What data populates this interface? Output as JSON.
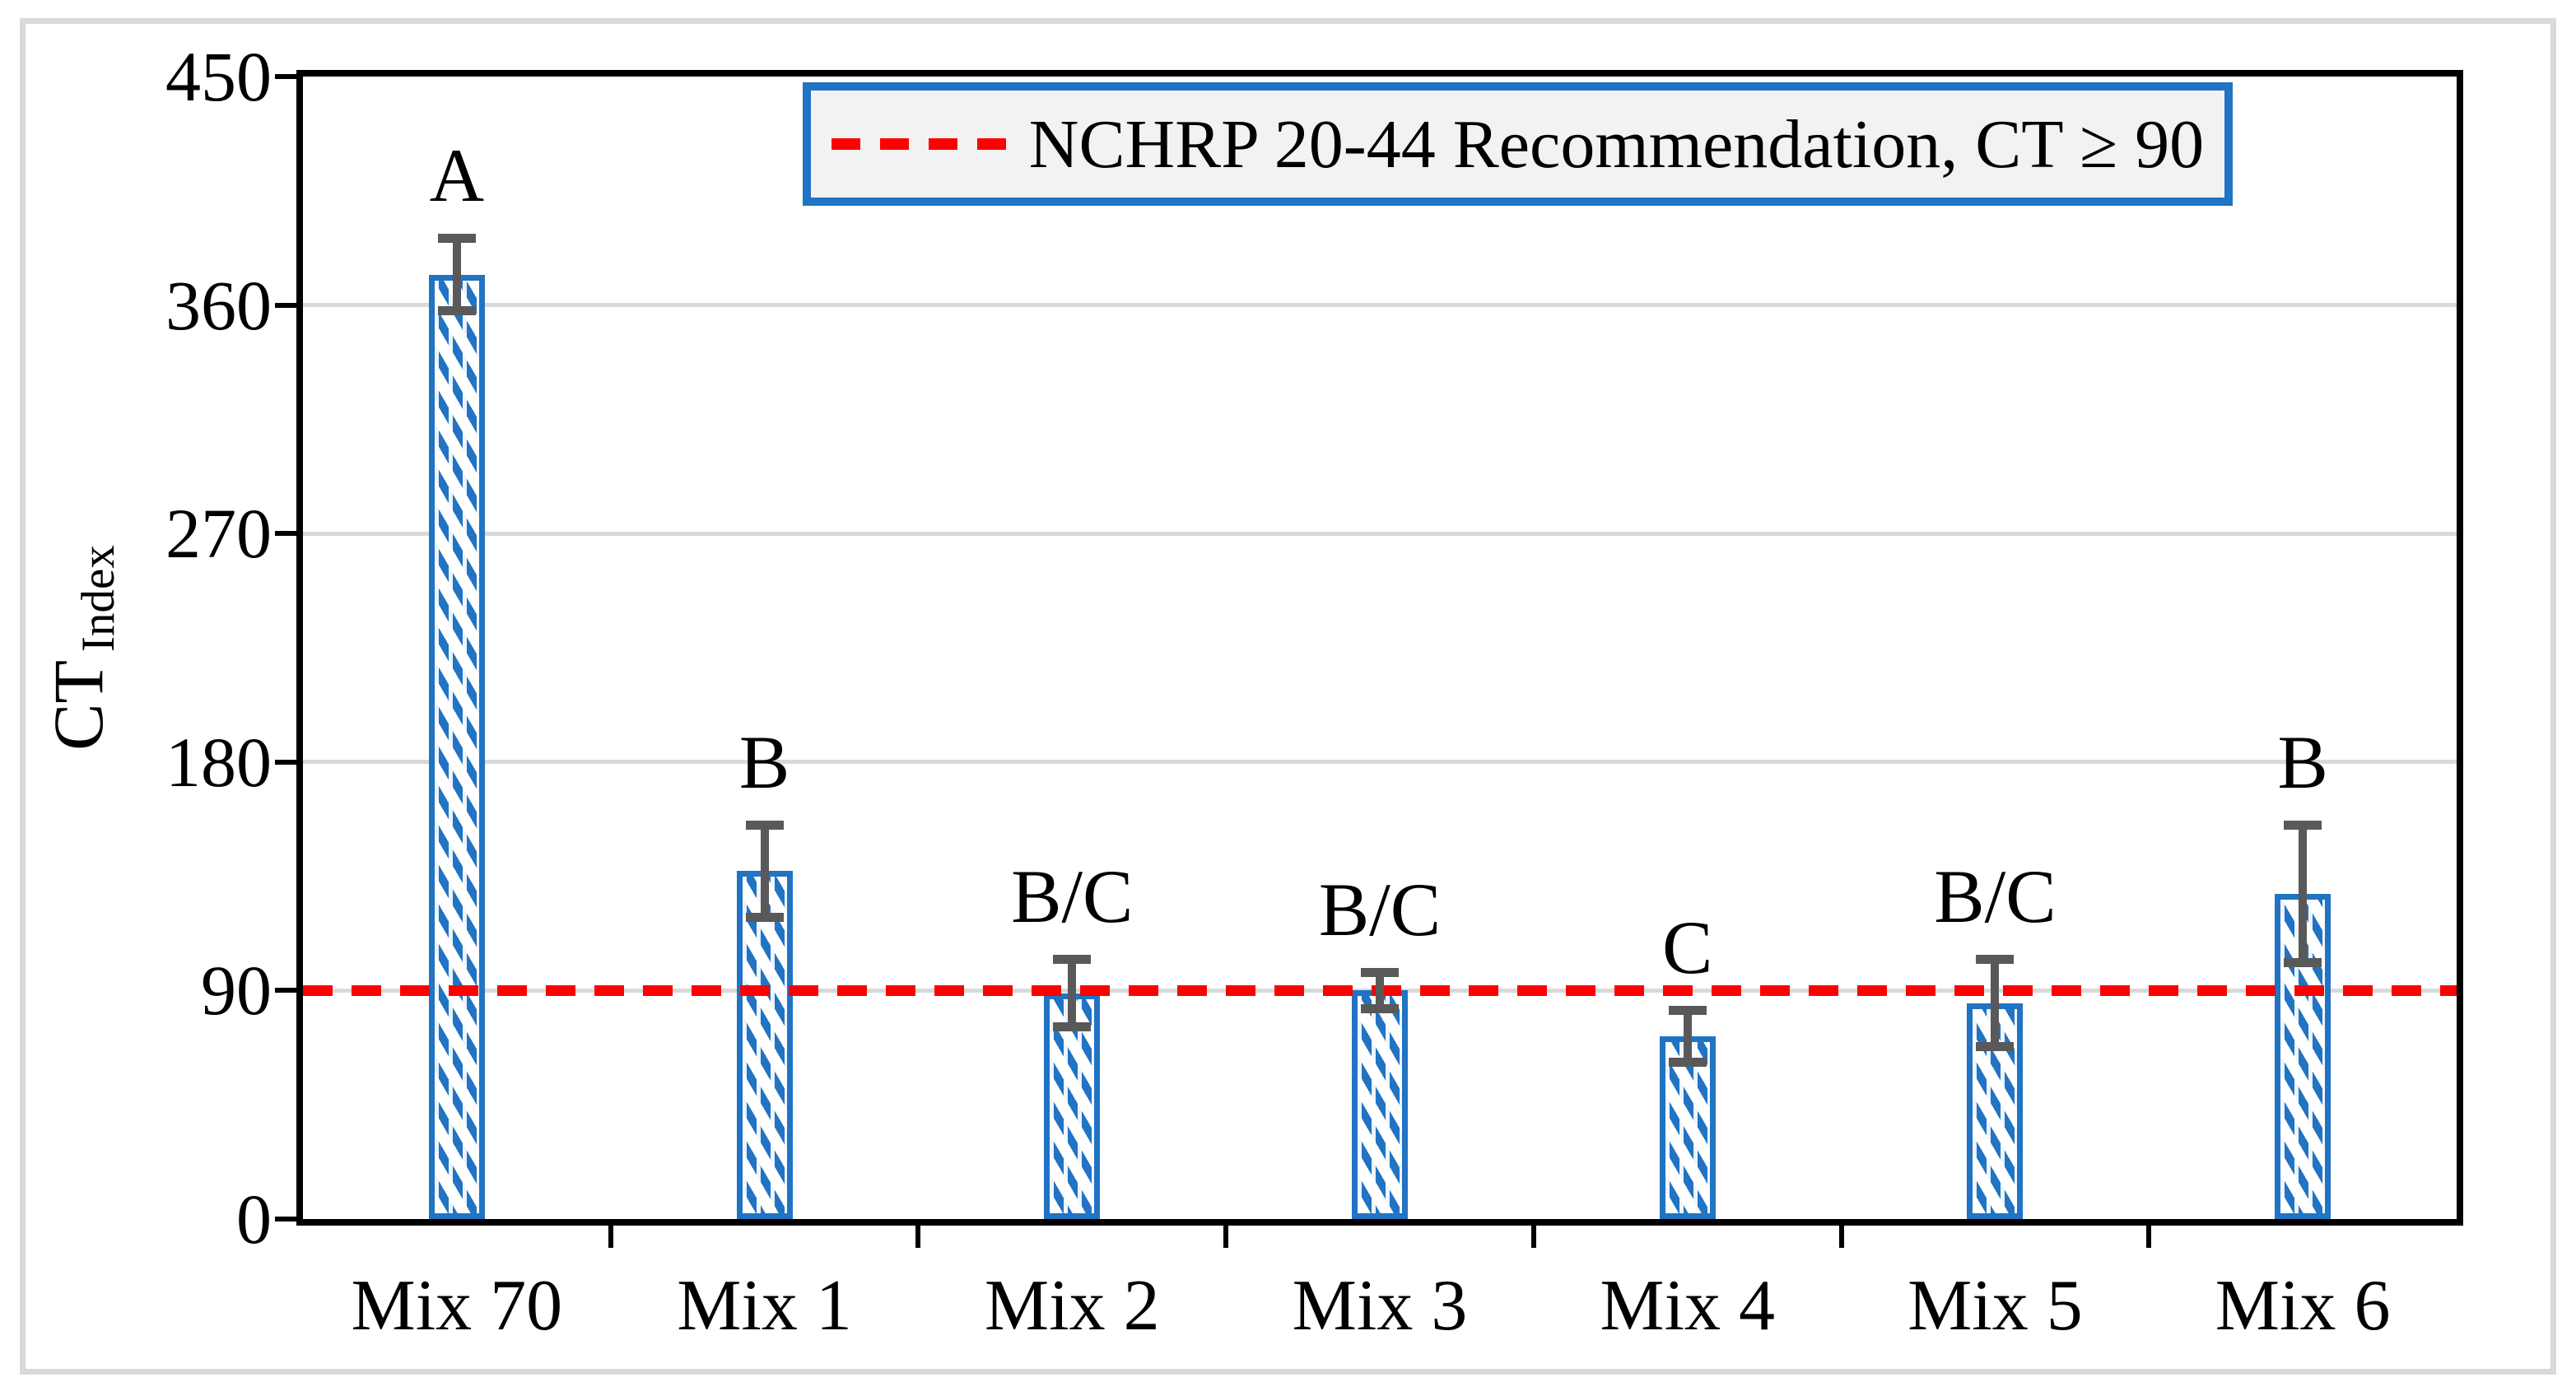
{
  "figure": {
    "y_axis_title_main": "CT",
    "y_axis_title_sub": "Index"
  },
  "legend": {
    "label": "NCHRP 20-44 Recommendation, CT ≥ 90"
  },
  "chart_data": {
    "type": "bar",
    "title": "",
    "categories": [
      "Mix 70",
      "Mix 1",
      "Mix 2",
      "Mix 3",
      "Mix 4",
      "Mix 5",
      "Mix 6"
    ],
    "values": [
      372,
      137,
      89,
      90,
      72,
      85,
      128
    ],
    "error_bars_plus_minus": [
      14,
      18,
      13,
      7,
      10,
      17,
      27
    ],
    "significance_letters": [
      "A",
      "B",
      "B/C",
      "B/C",
      "C",
      "B/C",
      "B"
    ],
    "xlabel": "",
    "ylabel": "CT Index",
    "ylim": [
      0,
      450
    ],
    "yticks": [
      0,
      90,
      180,
      270,
      360,
      450
    ],
    "grid": "horizontal",
    "legend_position": "top-inside",
    "reference_line": {
      "value": 90,
      "label": "NCHRP 20-44 Recommendation, CT ≥ 90",
      "style": "dashed"
    },
    "colors": {
      "bar_border": "#2173c4",
      "bar_hatch": "#2173c4",
      "bar_fill": "#ffffff",
      "error_bar": "#595959",
      "gridline": "#d9d9d9",
      "reference_line": "#ff0000",
      "axis": "#000000",
      "legend_fill": "#f2f2f2",
      "outer_frame": "#d9d9d9"
    }
  }
}
